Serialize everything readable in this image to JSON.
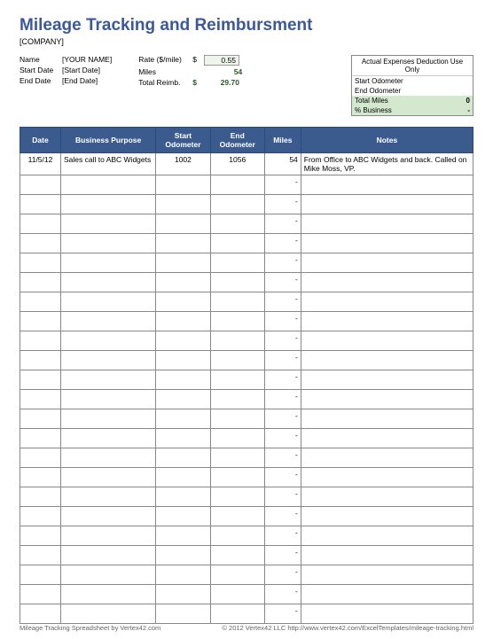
{
  "title": "Mileage Tracking and Reimbursment",
  "company": "[COMPANY]",
  "info": {
    "name_label": "Name",
    "name_value": "[YOUR NAME]",
    "start_date_label": "Start Date",
    "start_date_value": "[Start Date]",
    "end_date_label": "End Date",
    "end_date_value": "[End Date]",
    "rate_label": "Rate ($/mile)",
    "rate_value": "0.55",
    "miles_label": "Miles",
    "miles_value": "54",
    "reimb_label": "Total Reimb.",
    "reimb_value": "29.70"
  },
  "deduction": {
    "title": "Actual Expenses Deduction Use Only",
    "start_odo_label": "Start Odometer",
    "start_odo_value": "",
    "end_odo_label": "End Odometer",
    "end_odo_value": "",
    "total_miles_label": "Total Miles",
    "total_miles_value": "0",
    "pct_business_label": "% Business",
    "pct_business_value": "-"
  },
  "table": {
    "headers": {
      "date": "Date",
      "purpose": "Business Purpose",
      "start_odo": "Start Odometer",
      "end_odo": "End Odometer",
      "miles": "Miles",
      "notes": "Notes"
    },
    "col_widths": [
      "9%",
      "21%",
      "12%",
      "12%",
      "8%",
      "38%"
    ],
    "header_bg": "#3b5b8f",
    "header_text": "#ffffff",
    "border_color": "#888888",
    "rows": [
      {
        "date": "11/5/12",
        "purpose": "Sales call to ABC Widgets",
        "start": "1002",
        "end": "1056",
        "miles": "54",
        "notes": "From Office to ABC Widgets and back. Called on Mike Moss, VP."
      },
      {
        "date": "",
        "purpose": "",
        "start": "",
        "end": "",
        "miles": "-",
        "notes": ""
      },
      {
        "date": "",
        "purpose": "",
        "start": "",
        "end": "",
        "miles": "-",
        "notes": ""
      },
      {
        "date": "",
        "purpose": "",
        "start": "",
        "end": "",
        "miles": "-",
        "notes": ""
      },
      {
        "date": "",
        "purpose": "",
        "start": "",
        "end": "",
        "miles": "-",
        "notes": ""
      },
      {
        "date": "",
        "purpose": "",
        "start": "",
        "end": "",
        "miles": "-",
        "notes": ""
      },
      {
        "date": "",
        "purpose": "",
        "start": "",
        "end": "",
        "miles": "-",
        "notes": ""
      },
      {
        "date": "",
        "purpose": "",
        "start": "",
        "end": "",
        "miles": "-",
        "notes": ""
      },
      {
        "date": "",
        "purpose": "",
        "start": "",
        "end": "",
        "miles": "-",
        "notes": ""
      },
      {
        "date": "",
        "purpose": "",
        "start": "",
        "end": "",
        "miles": "-",
        "notes": ""
      },
      {
        "date": "",
        "purpose": "",
        "start": "",
        "end": "",
        "miles": "-",
        "notes": ""
      },
      {
        "date": "",
        "purpose": "",
        "start": "",
        "end": "",
        "miles": "-",
        "notes": ""
      },
      {
        "date": "",
        "purpose": "",
        "start": "",
        "end": "",
        "miles": "-",
        "notes": ""
      },
      {
        "date": "",
        "purpose": "",
        "start": "",
        "end": "",
        "miles": "-",
        "notes": ""
      },
      {
        "date": "",
        "purpose": "",
        "start": "",
        "end": "",
        "miles": "-",
        "notes": ""
      },
      {
        "date": "",
        "purpose": "",
        "start": "",
        "end": "",
        "miles": "-",
        "notes": ""
      },
      {
        "date": "",
        "purpose": "",
        "start": "",
        "end": "",
        "miles": "-",
        "notes": ""
      },
      {
        "date": "",
        "purpose": "",
        "start": "",
        "end": "",
        "miles": "-",
        "notes": ""
      },
      {
        "date": "",
        "purpose": "",
        "start": "",
        "end": "",
        "miles": "-",
        "notes": ""
      },
      {
        "date": "",
        "purpose": "",
        "start": "",
        "end": "",
        "miles": "-",
        "notes": ""
      },
      {
        "date": "",
        "purpose": "",
        "start": "",
        "end": "",
        "miles": "-",
        "notes": ""
      },
      {
        "date": "",
        "purpose": "",
        "start": "",
        "end": "",
        "miles": "-",
        "notes": ""
      },
      {
        "date": "",
        "purpose": "",
        "start": "",
        "end": "",
        "miles": "-",
        "notes": ""
      },
      {
        "date": "",
        "purpose": "",
        "start": "",
        "end": "",
        "miles": "-",
        "notes": ""
      }
    ]
  },
  "footer": {
    "left": "Mileage Tracking Spreadsheet by Vertex42.com",
    "right": "© 2012 Vertex42 LLC    http://www.vertex42.com/ExcelTemplates/mileage-tracking.html"
  }
}
